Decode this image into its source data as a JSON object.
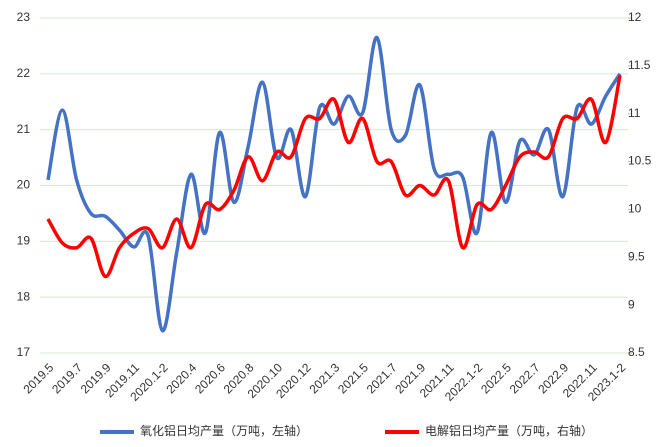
{
  "chart_data": {
    "type": "line",
    "categories": [
      "2019.5",
      null,
      "2019.7",
      null,
      "2019.9",
      null,
      "2019.11",
      null,
      "2020.1-2",
      null,
      "2020.4",
      null,
      "2020.6",
      null,
      "2020.8",
      null,
      "2020.10",
      null,
      "2020.12",
      null,
      "2021.3",
      null,
      "2021.5",
      null,
      "2021.7",
      null,
      "2021.9",
      null,
      "2021.11",
      null,
      "2022.1-2",
      null,
      "2022.5",
      null,
      "2022.7",
      null,
      "2022.9",
      null,
      "2022.11",
      null,
      "2023.1-2"
    ],
    "series": [
      {
        "name": "氧化铝日均产量（万吨，左轴）",
        "color": "#4472c4",
        "axis": "y",
        "values": [
          20.1,
          21.35,
          20.1,
          19.5,
          19.45,
          19.2,
          18.9,
          19.1,
          17.4,
          18.8,
          20.2,
          19.15,
          20.95,
          19.7,
          20.7,
          21.85,
          20.5,
          21.0,
          19.8,
          21.4,
          21.1,
          21.6,
          21.3,
          22.65,
          21.0,
          20.9,
          21.8,
          20.3,
          20.2,
          20.15,
          19.15,
          20.95,
          19.7,
          20.8,
          20.55,
          21.0,
          19.8,
          21.4,
          21.1,
          21.6,
          22.0
        ]
      },
      {
        "name": "电解铝日均产量（万吨，右轴）",
        "color": "#ff0000",
        "axis": "y2",
        "values": [
          9.9,
          9.65,
          9.6,
          9.7,
          9.3,
          9.6,
          9.75,
          9.8,
          9.6,
          9.9,
          9.6,
          10.05,
          10.0,
          10.2,
          10.55,
          10.3,
          10.6,
          10.55,
          10.95,
          10.95,
          11.15,
          10.7,
          10.95,
          10.5,
          10.5,
          10.15,
          10.25,
          10.15,
          10.3,
          9.6,
          10.05,
          10.0,
          10.25,
          10.55,
          10.6,
          10.55,
          10.95,
          10.95,
          11.15,
          10.7,
          11.4
        ]
      }
    ],
    "ylim": [
      17,
      23
    ],
    "yticks": [
      17,
      18,
      19,
      20,
      21,
      22,
      23
    ],
    "y2lim": [
      8.5,
      12
    ],
    "y2ticks": [
      8.5,
      9,
      9.5,
      10,
      10.5,
      11,
      11.5,
      12
    ],
    "grid": true,
    "legend": "bottom"
  }
}
